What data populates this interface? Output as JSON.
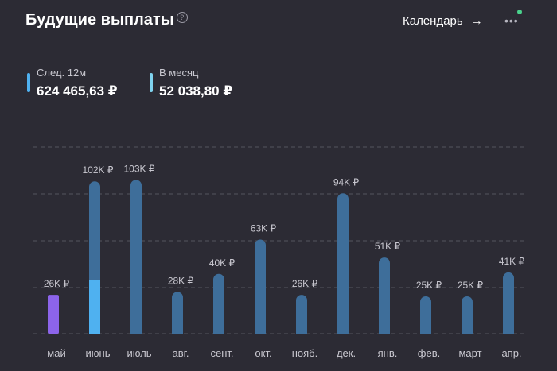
{
  "header": {
    "title": "Будущие выплаты",
    "help_icon": "?",
    "calendar_label": "Календарь",
    "arrow_icon": "→",
    "more_icon": "•••"
  },
  "stats": {
    "next12": {
      "label": "След. 12м",
      "value": "624 465,63 ₽"
    },
    "monthly": {
      "label": "В месяц",
      "value": "52 038,80 ₽"
    }
  },
  "colors": {
    "background": "#2c2b34",
    "bar": "#3e6e9a",
    "bar_highlight": "#4fb1f0",
    "bar_current": "#8c64ea",
    "grid": "#55545e",
    "notification": "#4ad28c"
  },
  "chart_data": {
    "type": "bar",
    "title": "",
    "xlabel": "",
    "ylabel": "",
    "ylim": [
      0,
      125
    ],
    "grid": true,
    "categories": [
      "май",
      "июнь",
      "июль",
      "авг.",
      "сент.",
      "окт.",
      "нояб.",
      "дек.",
      "янв.",
      "фев.",
      "март",
      "апр."
    ],
    "values": [
      26,
      102,
      103,
      28,
      40,
      63,
      26,
      94,
      51,
      25,
      25,
      41
    ],
    "highlight_part": [
      0,
      36,
      0,
      0,
      0,
      0,
      0,
      0,
      0,
      0,
      0,
      0
    ],
    "value_labels": [
      "26K ₽",
      "102K ₽",
      "103K ₽",
      "28K ₽",
      "40K ₽",
      "63K ₽",
      "26K ₽",
      "94K ₽",
      "51K ₽",
      "25K ₽",
      "25K ₽",
      "41K ₽"
    ],
    "current_index": 0
  }
}
